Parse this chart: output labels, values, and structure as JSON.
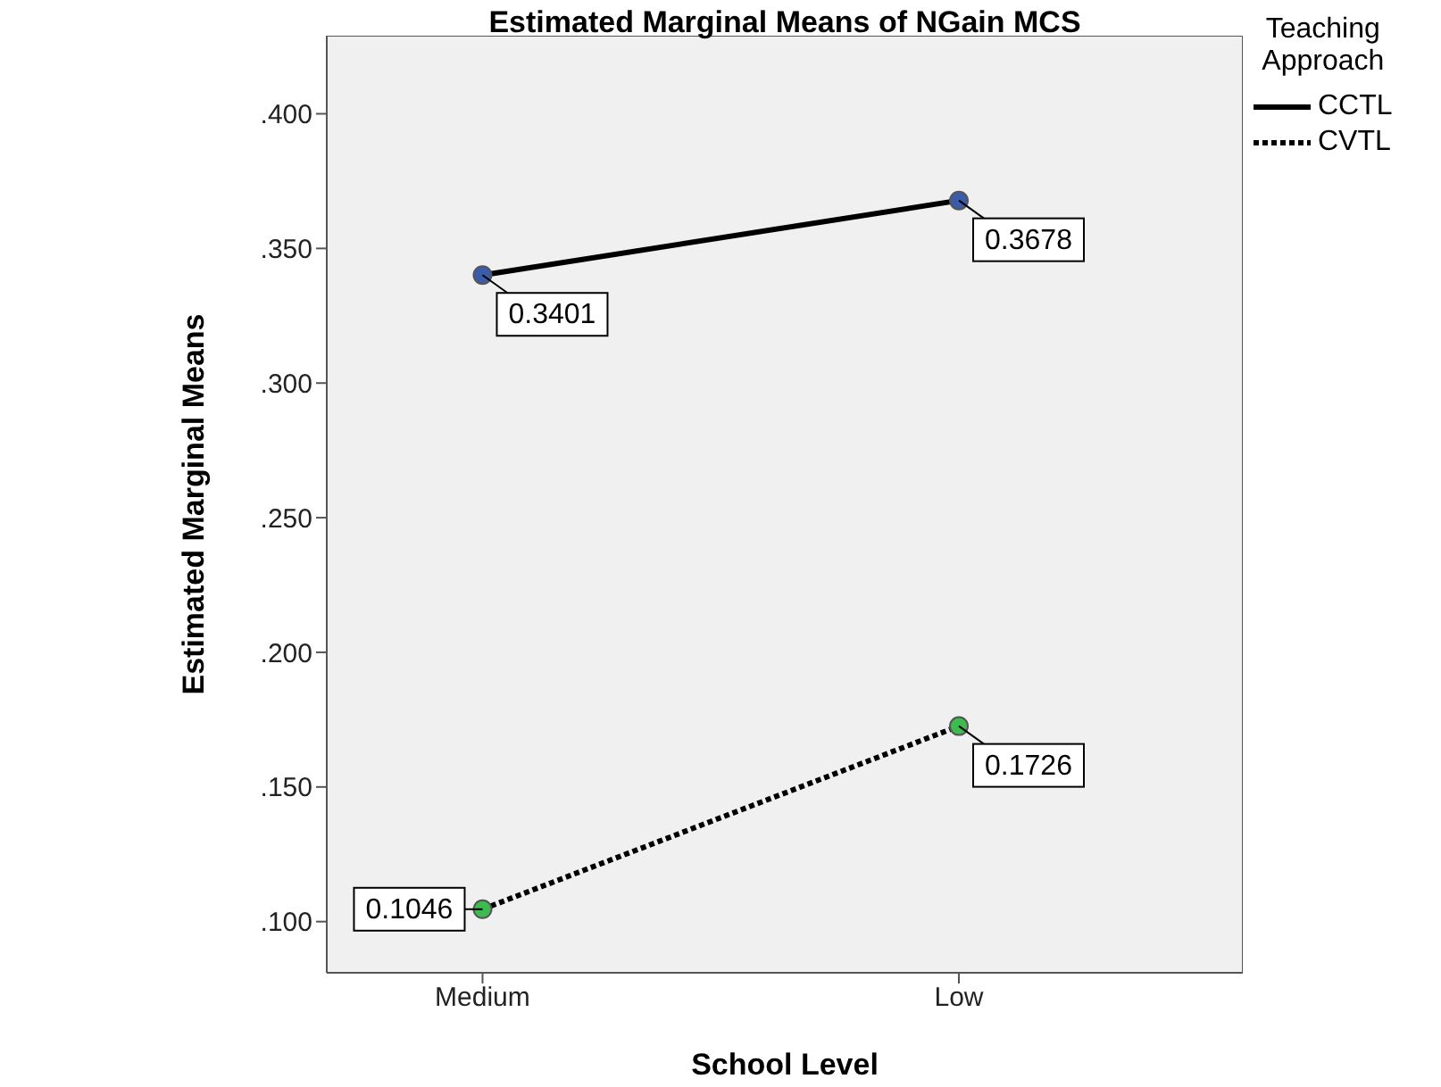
{
  "chart_data": {
    "type": "line",
    "title": "Estimated Marginal Means of NGain MCS",
    "xlabel": "School Level",
    "ylabel": "Estimated Marginal Means",
    "legend_title": "Teaching Approach",
    "categories": [
      "Medium",
      "Low"
    ],
    "series": [
      {
        "name": "CCTL",
        "color": "#000000",
        "colors": [
          "#3b5bab",
          "#3b5bab"
        ],
        "line_style": "solid",
        "values": [
          0.3401,
          0.3678
        ]
      },
      {
        "name": "CVTL",
        "color": "#000000",
        "colors": [
          "#3dbb4f",
          "#3dbb4f"
        ],
        "line_style": "dotted",
        "values": [
          0.1046,
          0.1726
        ]
      }
    ],
    "ylim": [
      0.081,
      0.429
    ],
    "yticks": [
      {
        "value": 0.1,
        "label": ".100"
      },
      {
        "value": 0.15,
        "label": ".150"
      },
      {
        "value": 0.2,
        "label": ".200"
      },
      {
        "value": 0.25,
        "label": ".250"
      },
      {
        "value": 0.3,
        "label": ".300"
      },
      {
        "value": 0.35,
        "label": ".350"
      },
      {
        "value": 0.4,
        "label": ".400"
      }
    ],
    "legend": "top right",
    "marker": "circle",
    "data_labels": true
  }
}
